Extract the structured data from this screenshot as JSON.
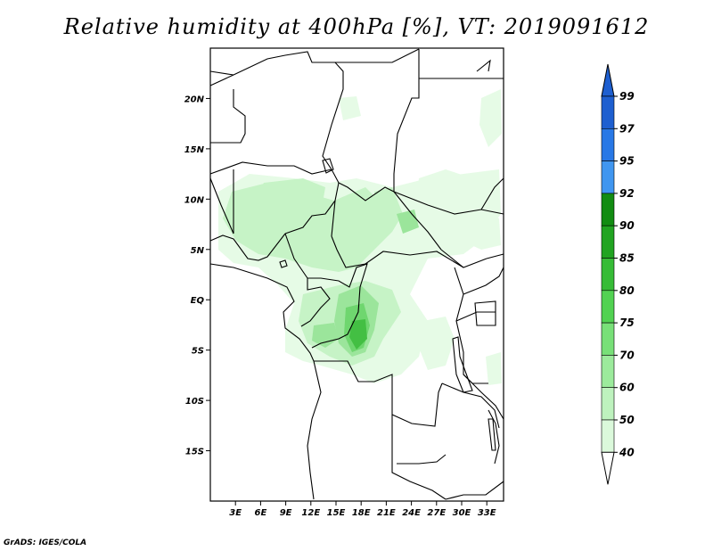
{
  "title": "Relative humidity at 400hPa [%], VT: 2019091612",
  "credit": "GrADS: IGES/COLA",
  "map": {
    "lat_labels": [
      "20N",
      "15N",
      "10N",
      "5N",
      "EQ",
      "5S",
      "10S",
      "15S"
    ],
    "lat_values": [
      20,
      15,
      10,
      5,
      0,
      -5,
      -10,
      -15
    ],
    "lon_labels": [
      "3E",
      "6E",
      "9E",
      "12E",
      "15E",
      "18E",
      "21E",
      "24E",
      "27E",
      "30E",
      "33E"
    ],
    "lon_values": [
      3,
      6,
      9,
      12,
      15,
      18,
      21,
      24,
      27,
      30,
      33
    ],
    "lon_range": [
      0,
      35
    ],
    "lat_range": [
      -20,
      25
    ]
  },
  "colorbar": {
    "labels": [
      "99",
      "97",
      "95",
      "92",
      "90",
      "85",
      "80",
      "75",
      "70",
      "60",
      "50",
      "40"
    ],
    "colors": [
      "#1e5fd0",
      "#2878e6",
      "#4096f0",
      "#128c12",
      "#21a421",
      "#36bc36",
      "#52d252",
      "#78e078",
      "#9ceb9c",
      "#bef2be",
      "#dbf9db",
      "#f0fff0"
    ],
    "outline": "#000000"
  },
  "palette": {
    "very_light_green": "#e6fbe6",
    "light_green": "#c6f3c6",
    "mid_green": "#9be59b",
    "green": "#6fd66f",
    "dark_green": "#43bf43"
  }
}
